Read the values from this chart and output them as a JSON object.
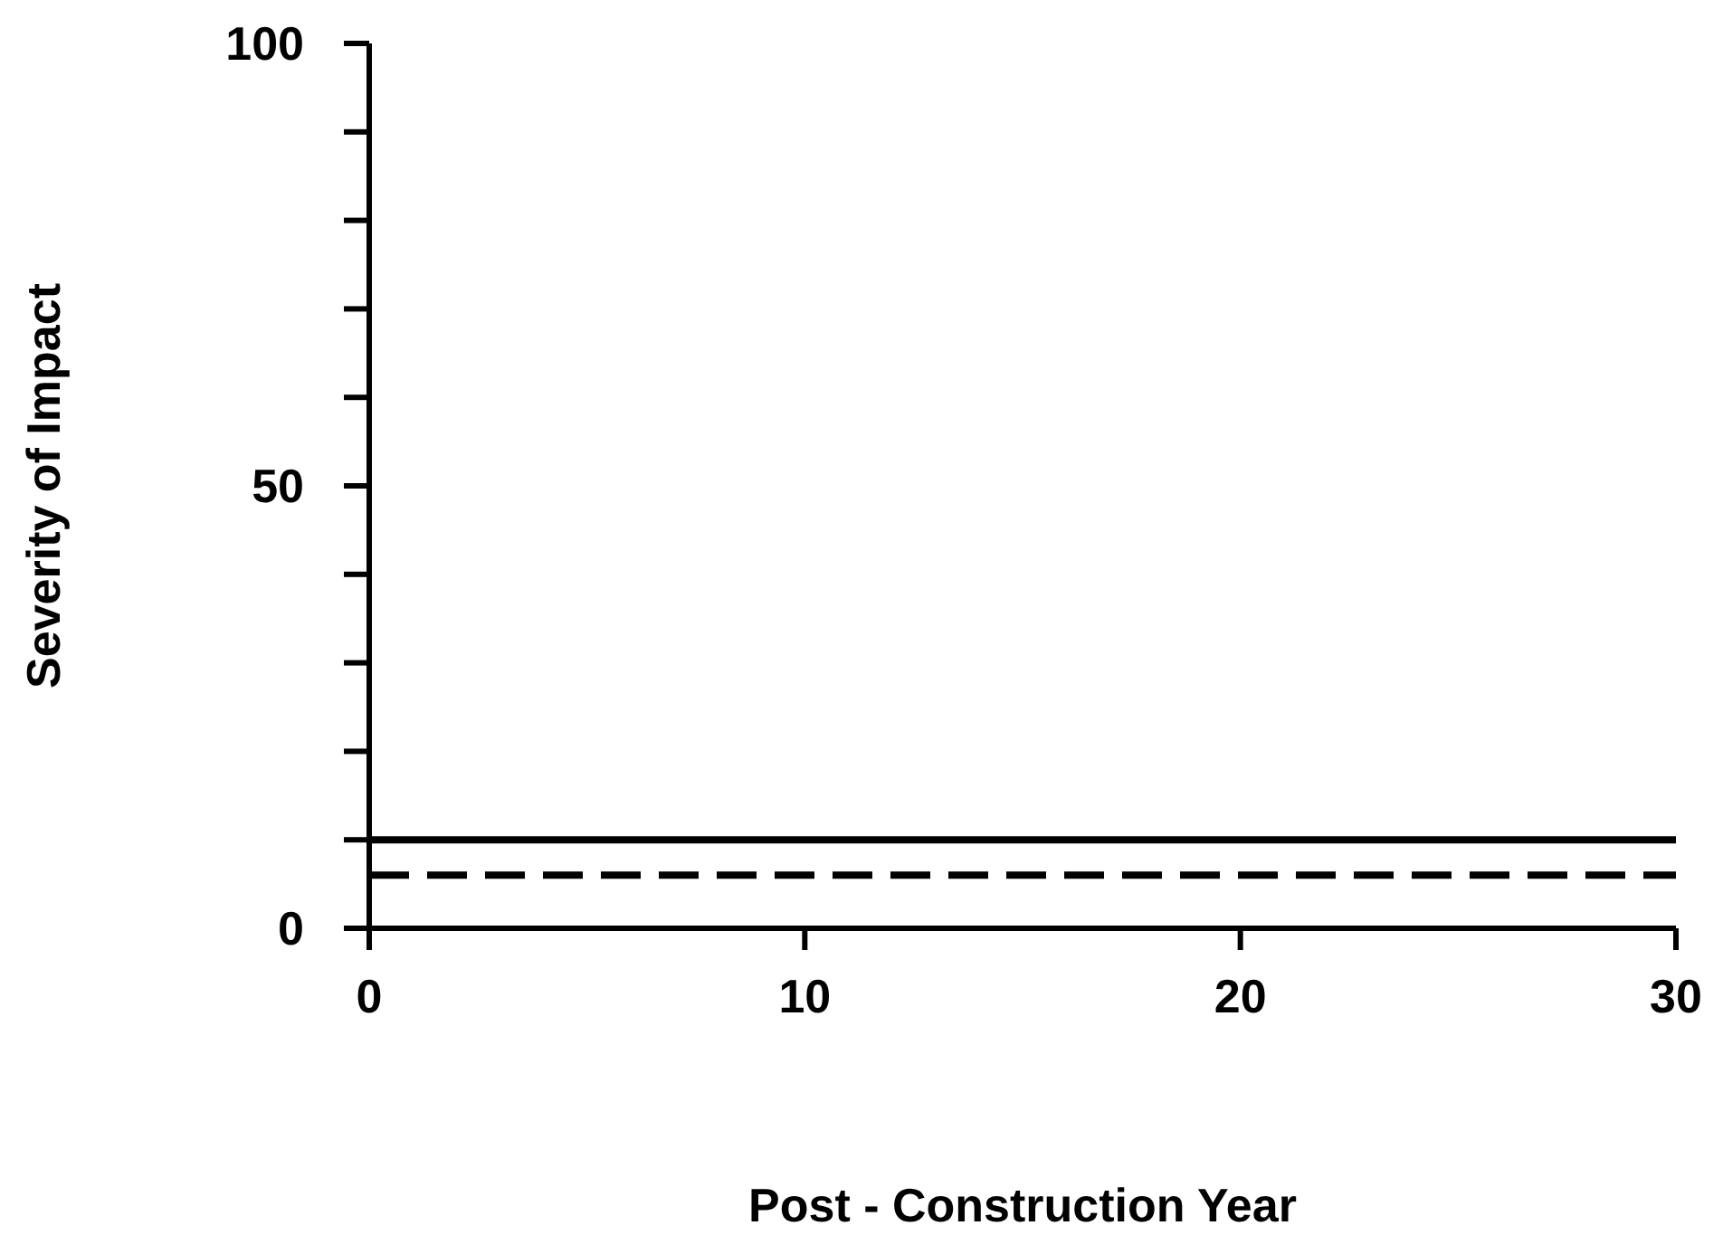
{
  "chart_data": {
    "type": "line",
    "xlabel": "Post - Construction Year",
    "ylabel": "Severity of Impact",
    "x": [
      0,
      30
    ],
    "series": [
      {
        "color": "#000000",
        "values": [
          10,
          10
        ],
        "line_style": "solid"
      },
      {
        "color": "#000000",
        "values": [
          6,
          6
        ],
        "line_style": "dashed"
      }
    ],
    "xlim": [
      0,
      30
    ],
    "xticks": [
      0,
      10,
      20,
      30
    ],
    "ylim": [
      0,
      100
    ],
    "yticks": [
      0,
      {
        "value": 10,
        "label": null
      },
      {
        "value": 20,
        "label": null
      },
      {
        "value": 30,
        "label": null
      },
      {
        "value": 40,
        "label": null
      },
      50,
      {
        "value": 60,
        "label": null
      },
      {
        "value": 70,
        "label": null
      },
      {
        "value": 80,
        "label": null
      },
      {
        "value": 90,
        "label": null
      },
      100
    ],
    "marker": "none",
    "grid": false
  }
}
